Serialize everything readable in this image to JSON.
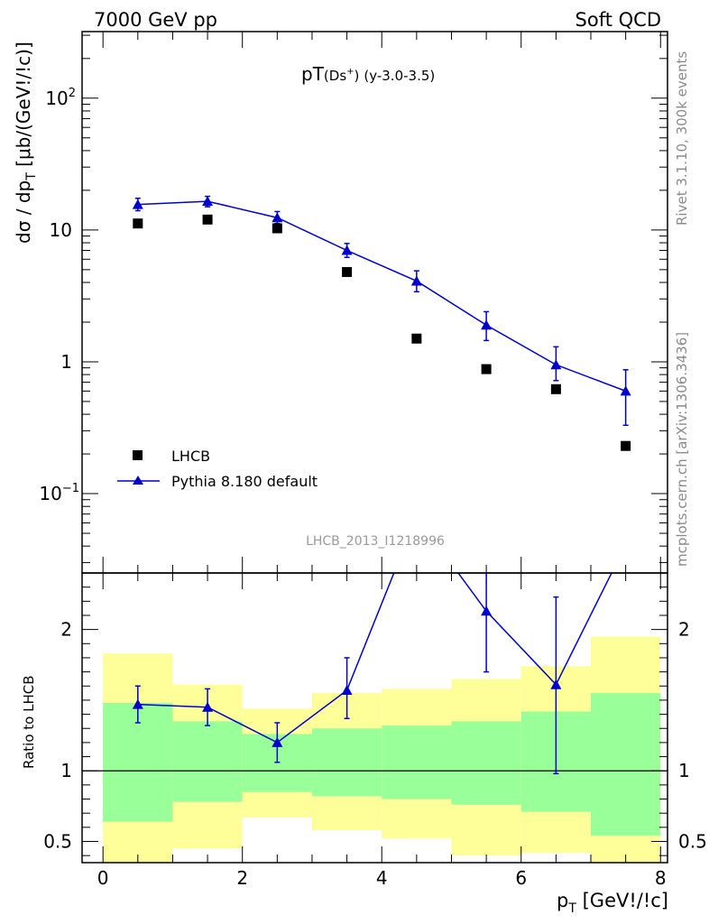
{
  "header": {
    "left": "7000 GeV pp",
    "right": "Soft QCD"
  },
  "plot_title": {
    "main": "pT",
    "particle": "(Ds",
    "particle_sup": "+",
    "particle_close": ")",
    "range": "(y-3.0-3.5)"
  },
  "analysis_id": "LHCB_2013_I1218996",
  "side_labels": {
    "top": "Rivet 3.1.10,  300k events",
    "bottom": "mcplots.cern.ch [arXiv:1306.3436]"
  },
  "legend": {
    "data_label": "LHCB",
    "mc_label": "Pythia 8.180 default"
  },
  "colors": {
    "mc": "#0000cc",
    "data": "#000000",
    "band_outer": "#ffff99",
    "band_inner": "#99ff99",
    "grey": "#8a8a8a"
  },
  "chart_data": [
    {
      "type": "scatter",
      "role": "main",
      "yscale": "log",
      "xlim": [
        -0.3,
        8.1
      ],
      "ylim": [
        0.025,
        320
      ],
      "xlabel": "",
      "ylabel_parts": {
        "a": "dσ / dp",
        "sub": "T",
        "b": " [μb/(GeV!/!c)]"
      },
      "y_ticks": [
        {
          "value": 100,
          "base": "10",
          "exp": "2"
        },
        {
          "value": 10,
          "base": "10",
          "exp": ""
        },
        {
          "value": 1,
          "base": "1",
          "exp": ""
        },
        {
          "value": 0.1,
          "base": "10",
          "exp": "−1"
        }
      ],
      "series": [
        {
          "name": "LHCB",
          "marker": "square",
          "x": [
            0.5,
            1.5,
            2.5,
            3.5,
            4.5,
            5.5,
            6.5,
            7.5
          ],
          "y": [
            11.2,
            12.0,
            10.3,
            4.8,
            1.5,
            0.88,
            0.62,
            0.23
          ]
        },
        {
          "name": "Pythia 8.180 default",
          "marker": "triangle",
          "x": [
            0.5,
            1.5,
            2.5,
            3.5,
            4.5,
            5.5,
            6.5,
            7.5
          ],
          "y": [
            15.6,
            16.5,
            12.4,
            7.0,
            4.1,
            1.9,
            0.95,
            0.6
          ],
          "y_low": [
            14.0,
            15.0,
            11.2,
            6.2,
            3.4,
            1.45,
            0.72,
            0.33
          ],
          "y_high": [
            17.4,
            18.0,
            13.8,
            7.9,
            4.9,
            2.4,
            1.3,
            0.87
          ]
        }
      ]
    },
    {
      "type": "area",
      "role": "ratio",
      "xlim": [
        -0.3,
        8.1
      ],
      "ylim": [
        0.35,
        2.4
      ],
      "xlabel_parts": {
        "a": "p",
        "sub": "T",
        "b": " [GeV!/!c]"
      },
      "ylabel": "Ratio to LHCB",
      "x_ticks": [
        0,
        2,
        4,
        6,
        8
      ],
      "y_ticks": [
        0.5,
        1,
        2
      ],
      "reference_line": 1,
      "bins": [
        [
          0,
          1
        ],
        [
          1,
          2
        ],
        [
          2,
          3
        ],
        [
          3,
          4
        ],
        [
          4,
          5
        ],
        [
          5,
          6
        ],
        [
          6,
          7
        ],
        [
          7,
          8
        ]
      ],
      "band_outer_low": [
        0.35,
        0.45,
        0.67,
        0.58,
        0.52,
        0.4,
        0.42,
        0.35
      ],
      "band_outer_high": [
        1.83,
        1.61,
        1.44,
        1.55,
        1.58,
        1.65,
        1.74,
        1.95
      ],
      "band_inner_low": [
        0.64,
        0.78,
        0.85,
        0.82,
        0.8,
        0.76,
        0.71,
        0.54
      ],
      "band_inner_high": [
        1.48,
        1.35,
        1.26,
        1.3,
        1.32,
        1.35,
        1.42,
        1.55
      ],
      "series": [
        {
          "name": "Pythia 8.180 default",
          "x": [
            0.5,
            1.5,
            2.5,
            3.5,
            4.5,
            5.5,
            6.5,
            7.5
          ],
          "y": [
            1.47,
            1.45,
            1.2,
            1.57,
            2.8,
            2.13,
            1.61,
            2.6
          ],
          "y_low": [
            1.34,
            1.32,
            1.06,
            1.37,
            2.8,
            1.7,
            0.98,
            2.6
          ],
          "y_high": [
            1.6,
            1.58,
            1.34,
            1.8,
            2.8,
            2.55,
            2.23,
            2.6
          ]
        }
      ]
    }
  ]
}
